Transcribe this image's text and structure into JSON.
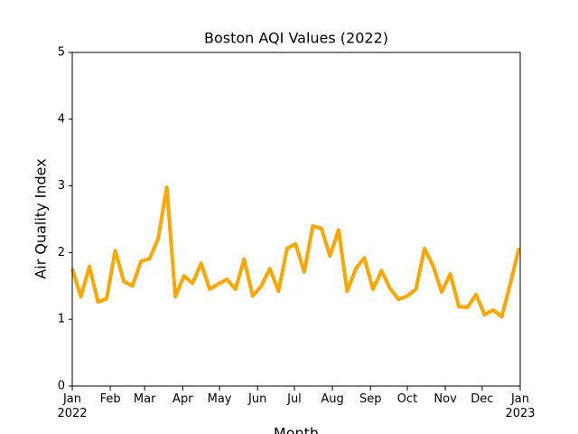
{
  "chart_data": {
    "type": "line",
    "title": "Boston AQI Values (2022)",
    "xlabel": "Month",
    "ylabel": "Air Quality Index",
    "x": [
      0,
      7,
      14,
      21,
      28,
      35,
      42,
      49,
      56,
      63,
      70,
      77,
      84,
      91,
      98,
      105,
      112,
      119,
      126,
      133,
      140,
      147,
      154,
      161,
      168,
      175,
      182,
      189,
      196,
      203,
      210,
      217,
      224,
      231,
      238,
      245,
      252,
      259,
      266,
      273,
      280,
      287,
      294,
      301,
      308,
      315,
      322,
      329,
      336,
      343,
      350,
      357,
      364
    ],
    "values": [
      1.76,
      1.34,
      1.79,
      1.26,
      1.31,
      2.03,
      1.57,
      1.5,
      1.87,
      1.91,
      2.21,
      2.98,
      1.34,
      1.65,
      1.54,
      1.84,
      1.45,
      1.53,
      1.6,
      1.45,
      1.9,
      1.35,
      1.5,
      1.76,
      1.42,
      2.06,
      2.13,
      1.71,
      2.4,
      2.36,
      1.95,
      2.34,
      1.42,
      1.76,
      1.92,
      1.45,
      1.73,
      1.46,
      1.3,
      1.35,
      1.45,
      2.06,
      1.8,
      1.41,
      1.68,
      1.19,
      1.18,
      1.37,
      1.07,
      1.14,
      1.04,
      1.54,
      2.07
    ],
    "color": "#ffa500",
    "xlim": [
      0,
      365
    ],
    "xticks": [
      {
        "value": 0,
        "label": "Jan\n2022"
      },
      {
        "value": 31,
        "label": "Feb"
      },
      {
        "value": 59,
        "label": "Mar"
      },
      {
        "value": 90,
        "label": "Apr"
      },
      {
        "value": 120,
        "label": "May"
      },
      {
        "value": 151,
        "label": "Jun"
      },
      {
        "value": 181,
        "label": "Jul"
      },
      {
        "value": 212,
        "label": "Aug"
      },
      {
        "value": 243,
        "label": "Sep"
      },
      {
        "value": 273,
        "label": "Oct"
      },
      {
        "value": 304,
        "label": "Nov"
      },
      {
        "value": 334,
        "label": "Dec"
      },
      {
        "value": 365,
        "label": "Jan\n2023"
      }
    ],
    "ylim": [
      0,
      5
    ],
    "yticks": [
      0,
      1,
      2,
      3,
      4,
      5
    ]
  }
}
